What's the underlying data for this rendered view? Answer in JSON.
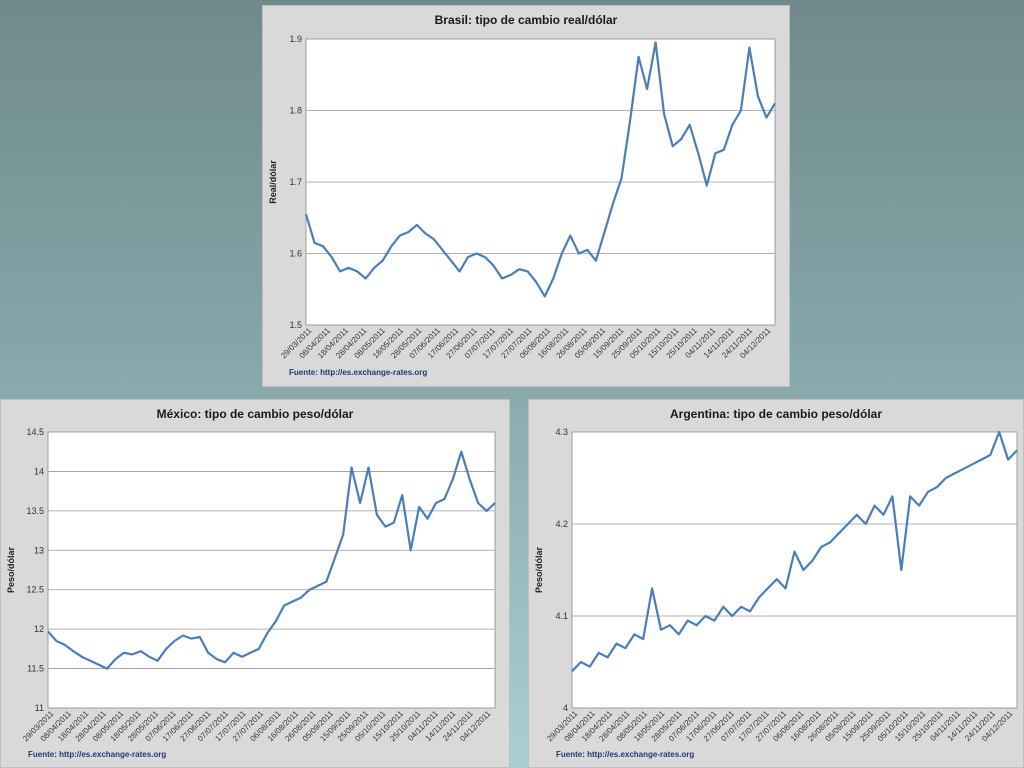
{
  "source_label": "Fuente: http://es.exchange-rates.org",
  "colors": {
    "series": "#4a7ebb",
    "panel_bg": "#d9d9d9",
    "plot_bg": "#ffffff"
  },
  "chart_data": [
    {
      "id": "brasil",
      "type": "line",
      "title": "Brasil: tipo de cambio real/dólar",
      "ylabel": "Real/dólar",
      "xlabel": "",
      "ylim": [
        1.5,
        1.9
      ],
      "yticks": [
        "1.5",
        "1.6",
        "1.7",
        "1.8",
        "1.9"
      ],
      "ytick_values": [
        1.5,
        1.6,
        1.7,
        1.8,
        1.9
      ],
      "x_tick_labels": [
        "29/03/2011",
        "08/04/2011",
        "18/04/2011",
        "28/04/2011",
        "08/05/2011",
        "18/05/2011",
        "28/05/2011",
        "07/06/2011",
        "17/06/2011",
        "27/06/2011",
        "07/07/2011",
        "17/07/2011",
        "27/07/2011",
        "06/08/2011",
        "16/08/2011",
        "26/08/2011",
        "05/09/2011",
        "15/09/2011",
        "25/09/2011",
        "05/10/2011",
        "15/10/2011",
        "25/10/2011",
        "04/11/2011",
        "14/11/2011",
        "24/11/2011",
        "04/12/2011"
      ],
      "grid": true,
      "series": [
        {
          "points": [
            [
              0,
              1.655
            ],
            [
              1,
              1.615
            ],
            [
              2,
              1.61
            ],
            [
              3,
              1.595
            ],
            [
              4,
              1.575
            ],
            [
              5,
              1.58
            ],
            [
              6,
              1.575
            ],
            [
              7,
              1.565
            ],
            [
              8,
              1.58
            ],
            [
              9,
              1.59
            ],
            [
              10,
              1.61
            ],
            [
              11,
              1.625
            ],
            [
              12,
              1.63
            ],
            [
              13,
              1.64
            ],
            [
              14,
              1.628
            ],
            [
              15,
              1.62
            ],
            [
              16,
              1.605
            ],
            [
              17,
              1.59
            ],
            [
              18,
              1.575
            ],
            [
              19,
              1.595
            ],
            [
              20,
              1.6
            ],
            [
              21,
              1.595
            ],
            [
              22,
              1.583
            ],
            [
              23,
              1.565
            ],
            [
              24,
              1.57
            ],
            [
              25,
              1.578
            ],
            [
              26,
              1.575
            ],
            [
              27,
              1.56
            ],
            [
              28,
              1.54
            ],
            [
              29,
              1.565
            ],
            [
              30,
              1.6
            ],
            [
              31,
              1.625
            ],
            [
              32,
              1.6
            ],
            [
              33,
              1.605
            ],
            [
              34,
              1.59
            ],
            [
              35,
              1.63
            ],
            [
              36,
              1.67
            ],
            [
              37,
              1.705
            ],
            [
              38,
              1.785
            ],
            [
              39,
              1.875
            ],
            [
              40,
              1.83
            ],
            [
              41,
              1.895
            ],
            [
              42,
              1.795
            ],
            [
              43,
              1.75
            ],
            [
              44,
              1.76
            ],
            [
              45,
              1.78
            ],
            [
              46,
              1.74
            ],
            [
              47,
              1.695
            ],
            [
              48,
              1.74
            ],
            [
              49,
              1.745
            ],
            [
              50,
              1.78
            ],
            [
              51,
              1.8
            ],
            [
              52,
              1.888
            ],
            [
              53,
              1.82
            ],
            [
              54,
              1.79
            ],
            [
              55,
              1.81
            ]
          ]
        }
      ]
    },
    {
      "id": "mexico",
      "type": "line",
      "title": "México: tipo de cambio peso/dólar",
      "ylabel": "Peso/dólar",
      "xlabel": "",
      "ylim": [
        11,
        14.5
      ],
      "yticks": [
        "11",
        "11.5",
        "12",
        "12.5",
        "13",
        "13.5",
        "14",
        "14.5"
      ],
      "ytick_values": [
        11,
        11.5,
        12,
        12.5,
        13,
        13.5,
        14,
        14.5
      ],
      "x_tick_labels": [
        "29/03/2011",
        "08/04/2011",
        "18/04/2011",
        "28/04/2011",
        "08/05/2011",
        "18/05/2011",
        "28/05/2011",
        "07/06/2011",
        "17/06/2011",
        "27/06/2011",
        "07/07/2011",
        "17/07/2011",
        "27/07/2011",
        "06/08/2011",
        "16/08/2011",
        "26/08/2011",
        "05/09/2011",
        "15/09/2011",
        "25/09/2011",
        "05/10/2011",
        "15/10/2011",
        "25/10/2011",
        "04/11/2011",
        "14/11/2011",
        "24/11/2011",
        "04/12/2011"
      ],
      "grid": true,
      "series": [
        {
          "points": [
            [
              0,
              11.97
            ],
            [
              1,
              11.85
            ],
            [
              2,
              11.8
            ],
            [
              3,
              11.72
            ],
            [
              4,
              11.65
            ],
            [
              5,
              11.6
            ],
            [
              6,
              11.55
            ],
            [
              7,
              11.5
            ],
            [
              8,
              11.62
            ],
            [
              9,
              11.7
            ],
            [
              10,
              11.68
            ],
            [
              11,
              11.72
            ],
            [
              12,
              11.65
            ],
            [
              13,
              11.6
            ],
            [
              14,
              11.75
            ],
            [
              15,
              11.85
            ],
            [
              16,
              11.92
            ],
            [
              17,
              11.88
            ],
            [
              18,
              11.9
            ],
            [
              19,
              11.7
            ],
            [
              20,
              11.62
            ],
            [
              21,
              11.58
            ],
            [
              22,
              11.7
            ],
            [
              23,
              11.65
            ],
            [
              24,
              11.7
            ],
            [
              25,
              11.75
            ],
            [
              26,
              11.95
            ],
            [
              27,
              12.1
            ],
            [
              28,
              12.3
            ],
            [
              29,
              12.35
            ],
            [
              30,
              12.4
            ],
            [
              31,
              12.5
            ],
            [
              32,
              12.55
            ],
            [
              33,
              12.6
            ],
            [
              34,
              12.9
            ],
            [
              35,
              13.2
            ],
            [
              36,
              14.05
            ],
            [
              37,
              13.6
            ],
            [
              38,
              14.05
            ],
            [
              39,
              13.45
            ],
            [
              40,
              13.3
            ],
            [
              41,
              13.35
            ],
            [
              42,
              13.7
            ],
            [
              43,
              13.0
            ],
            [
              44,
              13.55
            ],
            [
              45,
              13.4
            ],
            [
              46,
              13.6
            ],
            [
              47,
              13.65
            ],
            [
              48,
              13.9
            ],
            [
              49,
              14.25
            ],
            [
              50,
              13.9
            ],
            [
              51,
              13.6
            ],
            [
              52,
              13.5
            ],
            [
              53,
              13.6
            ]
          ]
        }
      ]
    },
    {
      "id": "argentina",
      "type": "line",
      "title": "Argentina: tipo de cambio peso/dólar",
      "ylabel": "Peso/dólar",
      "xlabel": "",
      "ylim": [
        4.0,
        4.3
      ],
      "yticks": [
        "4",
        "4.1",
        "4.2",
        "4.3"
      ],
      "ytick_values": [
        4.0,
        4.1,
        4.2,
        4.3
      ],
      "x_tick_labels": [
        "29/03/2011",
        "08/04/2011",
        "18/04/2011",
        "28/04/2011",
        "08/05/2011",
        "18/05/2011",
        "28/05/2011",
        "07/06/2011",
        "17/06/2011",
        "27/06/2011",
        "07/07/2011",
        "17/07/2011",
        "27/07/2011",
        "06/08/2011",
        "16/08/2011",
        "26/08/2011",
        "05/09/2011",
        "15/09/2011",
        "25/09/2011",
        "05/10/2011",
        "15/10/2011",
        "25/10/2011",
        "04/11/2011",
        "14/11/2011",
        "24/11/2011",
        "04/12/2011"
      ],
      "grid": true,
      "series": [
        {
          "points": [
            [
              0,
              4.04
            ],
            [
              1,
              4.05
            ],
            [
              2,
              4.045
            ],
            [
              3,
              4.06
            ],
            [
              4,
              4.055
            ],
            [
              5,
              4.07
            ],
            [
              6,
              4.065
            ],
            [
              7,
              4.08
            ],
            [
              8,
              4.075
            ],
            [
              9,
              4.13
            ],
            [
              10,
              4.085
            ],
            [
              11,
              4.09
            ],
            [
              12,
              4.08
            ],
            [
              13,
              4.095
            ],
            [
              14,
              4.09
            ],
            [
              15,
              4.1
            ],
            [
              16,
              4.095
            ],
            [
              17,
              4.11
            ],
            [
              18,
              4.1
            ],
            [
              19,
              4.11
            ],
            [
              20,
              4.105
            ],
            [
              21,
              4.12
            ],
            [
              22,
              4.13
            ],
            [
              23,
              4.14
            ],
            [
              24,
              4.13
            ],
            [
              25,
              4.17
            ],
            [
              26,
              4.15
            ],
            [
              27,
              4.16
            ],
            [
              28,
              4.175
            ],
            [
              29,
              4.18
            ],
            [
              30,
              4.19
            ],
            [
              31,
              4.2
            ],
            [
              32,
              4.21
            ],
            [
              33,
              4.2
            ],
            [
              34,
              4.22
            ],
            [
              35,
              4.21
            ],
            [
              36,
              4.23
            ],
            [
              37,
              4.15
            ],
            [
              38,
              4.23
            ],
            [
              39,
              4.22
            ],
            [
              40,
              4.235
            ],
            [
              41,
              4.24
            ],
            [
              42,
              4.25
            ],
            [
              43,
              4.255
            ],
            [
              44,
              4.26
            ],
            [
              45,
              4.265
            ],
            [
              46,
              4.27
            ],
            [
              47,
              4.275
            ],
            [
              48,
              4.3
            ],
            [
              49,
              4.27
            ],
            [
              50,
              4.28
            ]
          ]
        }
      ]
    }
  ]
}
